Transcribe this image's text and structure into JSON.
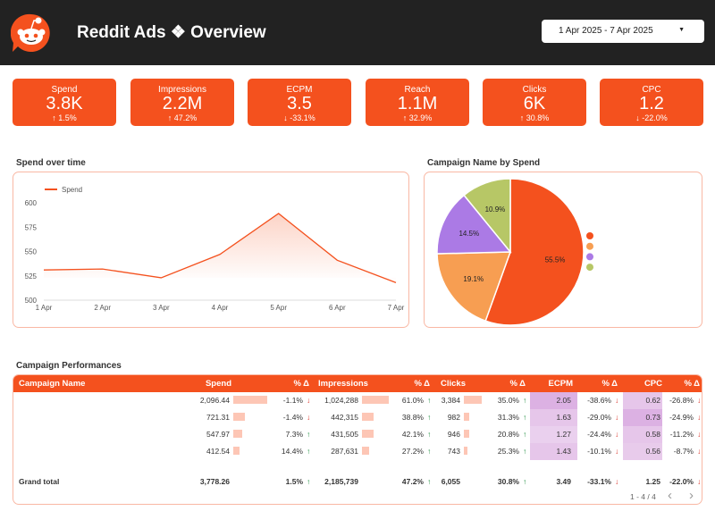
{
  "header": {
    "title": "Reddit Ads ❖ Overview",
    "date_range": "1 Apr 2025 - 7 Apr 2025",
    "logo": "reddit-logo",
    "accent": "#f4511e"
  },
  "kpis": [
    {
      "label": "Spend",
      "value": "3.8K",
      "delta": "1.5%",
      "dir": "up"
    },
    {
      "label": "Impressions",
      "value": "2.2M",
      "delta": "47.2%",
      "dir": "up"
    },
    {
      "label": "ECPM",
      "value": "3.5",
      "delta": "-33.1%",
      "dir": "down"
    },
    {
      "label": "Reach",
      "value": "1.1M",
      "delta": "32.9%",
      "dir": "up"
    },
    {
      "label": "Clicks",
      "value": "6K",
      "delta": "30.8%",
      "dir": "up"
    },
    {
      "label": "CPC",
      "value": "1.2",
      "delta": "-22.0%",
      "dir": "down"
    }
  ],
  "chart_data": [
    {
      "type": "area",
      "title": "Spend over time",
      "categories": [
        "1 Apr",
        "2 Apr",
        "3 Apr",
        "4 Apr",
        "5 Apr",
        "6 Apr",
        "7 Apr"
      ],
      "series": [
        {
          "name": "Spend",
          "values": [
            531,
            532,
            523,
            547,
            589,
            541,
            518
          ],
          "color": "#f4511e"
        }
      ],
      "yticks": [
        "500",
        "525",
        "550",
        "575",
        "600"
      ],
      "ylim": [
        500,
        600
      ],
      "legend": "top-left"
    },
    {
      "type": "pie",
      "title": "Campaign Name by Spend",
      "values": [
        55.5,
        19.1,
        14.5,
        10.9
      ],
      "labels": [
        "55.5%",
        "19.1%",
        "14.5%",
        "10.9%"
      ],
      "colors": [
        "#f4511e",
        "#f79e52",
        "#ab7ae5",
        "#b7c766"
      ],
      "legend": "right"
    }
  ],
  "table": {
    "title": "Campaign Performances",
    "headers": [
      "Campaign Name",
      "Spend",
      "% Δ",
      "Impressions",
      "% Δ",
      "Clicks",
      "% Δ",
      "ECPM",
      "% Δ",
      "CPC",
      "% Δ"
    ],
    "rows": [
      {
        "name": "",
        "spend": "2,096.44",
        "spend_d": "-1.1%",
        "spend_dir": "down",
        "imp": "1,024,288",
        "imp_d": "61.0%",
        "clicks": "3,384",
        "clicks_d": "35.0%",
        "ecpm": "2.05",
        "ecpm_d": "-38.6%",
        "cpc": "0.62",
        "cpc_d": "-26.8%"
      },
      {
        "name": "",
        "spend": "721.31",
        "spend_d": "-1.4%",
        "spend_dir": "down",
        "imp": "442,315",
        "imp_d": "38.8%",
        "clicks": "982",
        "clicks_d": "31.3%",
        "ecpm": "1.63",
        "ecpm_d": "-29.0%",
        "cpc": "0.73",
        "cpc_d": "-24.9%"
      },
      {
        "name": "",
        "spend": "547.97",
        "spend_d": "7.3%",
        "spend_dir": "up",
        "imp": "431,505",
        "imp_d": "42.1%",
        "clicks": "946",
        "clicks_d": "20.8%",
        "ecpm": "1.27",
        "ecpm_d": "-24.4%",
        "cpc": "0.58",
        "cpc_d": "-11.2%"
      },
      {
        "name": "",
        "spend": "412.54",
        "spend_d": "14.4%",
        "spend_dir": "up",
        "imp": "287,631",
        "imp_d": "27.2%",
        "clicks": "743",
        "clicks_d": "25.3%",
        "ecpm": "1.43",
        "ecpm_d": "-10.1%",
        "cpc": "0.56",
        "cpc_d": "-8.7%"
      }
    ],
    "total": {
      "name": "Grand total",
      "spend": "3,778.26",
      "spend_d": "1.5%",
      "imp": "2,185,739",
      "imp_d": "47.2%",
      "clicks": "6,055",
      "clicks_d": "30.8%",
      "ecpm": "3.49",
      "ecpm_d": "-33.1%",
      "cpc": "1.25",
      "cpc_d": "-22.0%"
    },
    "pagination": "1 - 4 / 4"
  }
}
